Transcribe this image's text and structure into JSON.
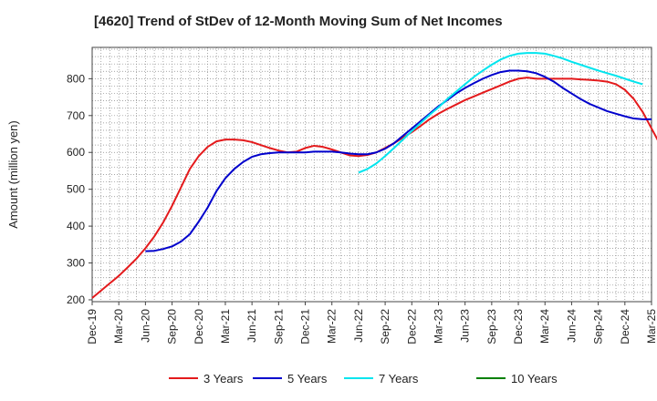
{
  "title": "[4620]  Trend of StDev of 12-Month Moving Sum of Net Incomes",
  "chart_data": {
    "type": "line",
    "ylabel": "Amount (million yen)",
    "xlabel": "",
    "ylim": [
      195,
      885
    ],
    "yticks": [
      200,
      300,
      400,
      500,
      600,
      700,
      800
    ],
    "x_tick_labels": [
      "Dec-19",
      "Mar-20",
      "Jun-20",
      "Sep-20",
      "Dec-20",
      "Mar-21",
      "Jun-21",
      "Sep-21",
      "Dec-21",
      "Mar-22",
      "Jun-22",
      "Sep-22",
      "Dec-22",
      "Mar-23",
      "Jun-23",
      "Sep-23",
      "Dec-23",
      "Mar-24",
      "Jun-24",
      "Sep-24",
      "Dec-24",
      "Mar-25"
    ],
    "grid": true,
    "legend_position": "bottom",
    "series": [
      {
        "name": "3 Years",
        "color": "#e41a1c",
        "start_index": 0,
        "values": [
          205,
          225,
          245,
          265,
          288,
          312,
          340,
          372,
          410,
          455,
          505,
          555,
          590,
          615,
          630,
          635,
          635,
          633,
          628,
          620,
          612,
          605,
          600,
          602,
          612,
          618,
          615,
          608,
          600,
          592,
          590,
          593,
          600,
          612,
          625,
          640,
          655,
          672,
          690,
          705,
          718,
          730,
          742,
          752,
          762,
          772,
          782,
          792,
          800,
          803,
          800,
          800,
          800,
          800,
          800,
          798,
          797,
          795,
          792,
          785,
          770,
          745,
          710,
          665,
          620,
          598,
          588
        ]
      },
      {
        "name": "5 Years",
        "color": "#0000cc",
        "start_index": 6,
        "values": [
          332,
          333,
          338,
          345,
          358,
          378,
          412,
          450,
          495,
          530,
          555,
          574,
          588,
          595,
          598,
          600,
          600,
          600,
          600,
          602,
          602,
          602,
          600,
          597,
          595,
          595,
          600,
          610,
          625,
          645,
          665,
          685,
          705,
          725,
          742,
          760,
          775,
          788,
          800,
          810,
          818,
          822,
          822,
          820,
          815,
          805,
          792,
          775,
          760,
          745,
          732,
          722,
          712,
          705,
          698,
          692,
          690,
          690
        ]
      },
      {
        "name": "7 Years",
        "color": "#00e5ee",
        "start_index": 30,
        "values": [
          545,
          555,
          570,
          590,
          612,
          635,
          658,
          680,
          702,
          722,
          745,
          765,
          785,
          805,
          822,
          838,
          852,
          862,
          868,
          870,
          870,
          868,
          862,
          855,
          846,
          838,
          830,
          822,
          815,
          808,
          800,
          792,
          785
        ]
      },
      {
        "name": "10 Years",
        "color": "#008000",
        "start_index": 0,
        "values": []
      }
    ]
  }
}
